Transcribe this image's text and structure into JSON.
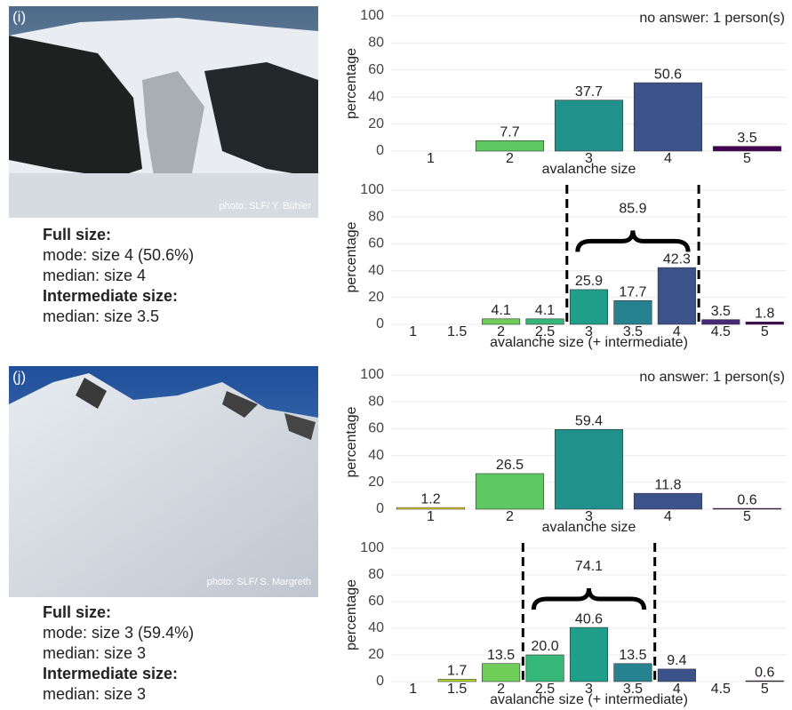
{
  "panels": [
    {
      "label": "(i)",
      "photo_credit": "photo: SLF/ Y. Bühler",
      "summary": [
        {
          "heading": "Full size:",
          "lines": [
            "mode: size 4 (50.6%)",
            "median: size 4"
          ]
        },
        {
          "heading": "Intermediate size:",
          "lines": [
            "median: size 3.5"
          ]
        }
      ]
    },
    {
      "label": "(j)",
      "photo_credit": "photo: SLF/ S. Margreth",
      "summary": [
        {
          "heading": "Full size:",
          "lines": [
            "mode: size 3 (59.4%)",
            "median: size 3"
          ]
        },
        {
          "heading": "Intermediate size:",
          "lines": [
            "median: size 3"
          ]
        }
      ]
    }
  ],
  "chart_data": [
    {
      "type": "bar",
      "annotation": "no answer:  1 person(s)",
      "xlabel": "avalanche size",
      "ylabel": "percentage",
      "categories": [
        "1",
        "2",
        "3",
        "4",
        "5"
      ],
      "values": [
        0,
        7.7,
        37.7,
        50.6,
        3.5
      ],
      "value_labels": [
        null,
        "7.7",
        "37.7",
        "50.6",
        "3.5"
      ],
      "colors": [
        "#fde725",
        "#5ec962",
        "#21918c",
        "#3b528b",
        "#440154"
      ],
      "ylim": [
        0,
        100
      ],
      "yticks": [
        0,
        20,
        40,
        60,
        80,
        100
      ],
      "grid": true
    },
    {
      "type": "bar",
      "xlabel": "avalanche size (+ intermediate)",
      "ylabel": "percentage",
      "categories": [
        "1",
        "1.5",
        "2",
        "2.5",
        "3",
        "3.5",
        "4",
        "4.5",
        "5"
      ],
      "values": [
        0,
        0,
        4.1,
        4.1,
        25.9,
        17.7,
        42.3,
        3.5,
        1.8
      ],
      "value_labels": [
        null,
        null,
        "4.1",
        "4.1",
        "25.9",
        "17.7",
        "42.3",
        "3.5",
        "1.8"
      ],
      "colors": [
        "#fde725",
        "#b5de2b",
        "#6ece58",
        "#35b779",
        "#1f9e89",
        "#26828e",
        "#3b528b",
        "#482878",
        "#440154"
      ],
      "bracket": {
        "value": 85.9,
        "first": "3",
        "last": "4"
      },
      "ylim": [
        0,
        100
      ],
      "yticks": [
        0,
        20,
        40,
        60,
        80,
        100
      ],
      "grid": true
    },
    {
      "type": "bar",
      "annotation": "no answer:  1 person(s)",
      "xlabel": "avalanche size",
      "ylabel": "percentage",
      "categories": [
        "1",
        "2",
        "3",
        "4",
        "5"
      ],
      "values": [
        1.2,
        26.5,
        59.4,
        11.8,
        0.6
      ],
      "value_labels": [
        "1.2",
        "26.5",
        "59.4",
        "11.8",
        "0.6"
      ],
      "colors": [
        "#fde725",
        "#5ec962",
        "#21918c",
        "#3b528b",
        "#440154"
      ],
      "ylim": [
        0,
        100
      ],
      "yticks": [
        0,
        20,
        40,
        60,
        80,
        100
      ],
      "grid": true
    },
    {
      "type": "bar",
      "xlabel": "avalanche size (+ intermediate)",
      "ylabel": "percentage",
      "categories": [
        "1",
        "1.5",
        "2",
        "2.5",
        "3",
        "3.5",
        "4",
        "4.5",
        "5"
      ],
      "values": [
        0,
        1.7,
        13.5,
        20,
        40.6,
        13.5,
        9.4,
        0,
        0.6
      ],
      "value_labels": [
        null,
        "1.7",
        "13.5",
        "20.0",
        "40.6",
        "13.5",
        "9.4",
        null,
        "0.6"
      ],
      "colors": [
        "#fde725",
        "#b5de2b",
        "#6ece58",
        "#35b779",
        "#1f9e89",
        "#26828e",
        "#3b528b",
        "#482878",
        "#440154"
      ],
      "bracket": {
        "value": 74.1,
        "first": "2.5",
        "last": "3.5"
      },
      "ylim": [
        0,
        100
      ],
      "yticks": [
        0,
        20,
        40,
        60,
        80,
        100
      ],
      "grid": true
    }
  ]
}
